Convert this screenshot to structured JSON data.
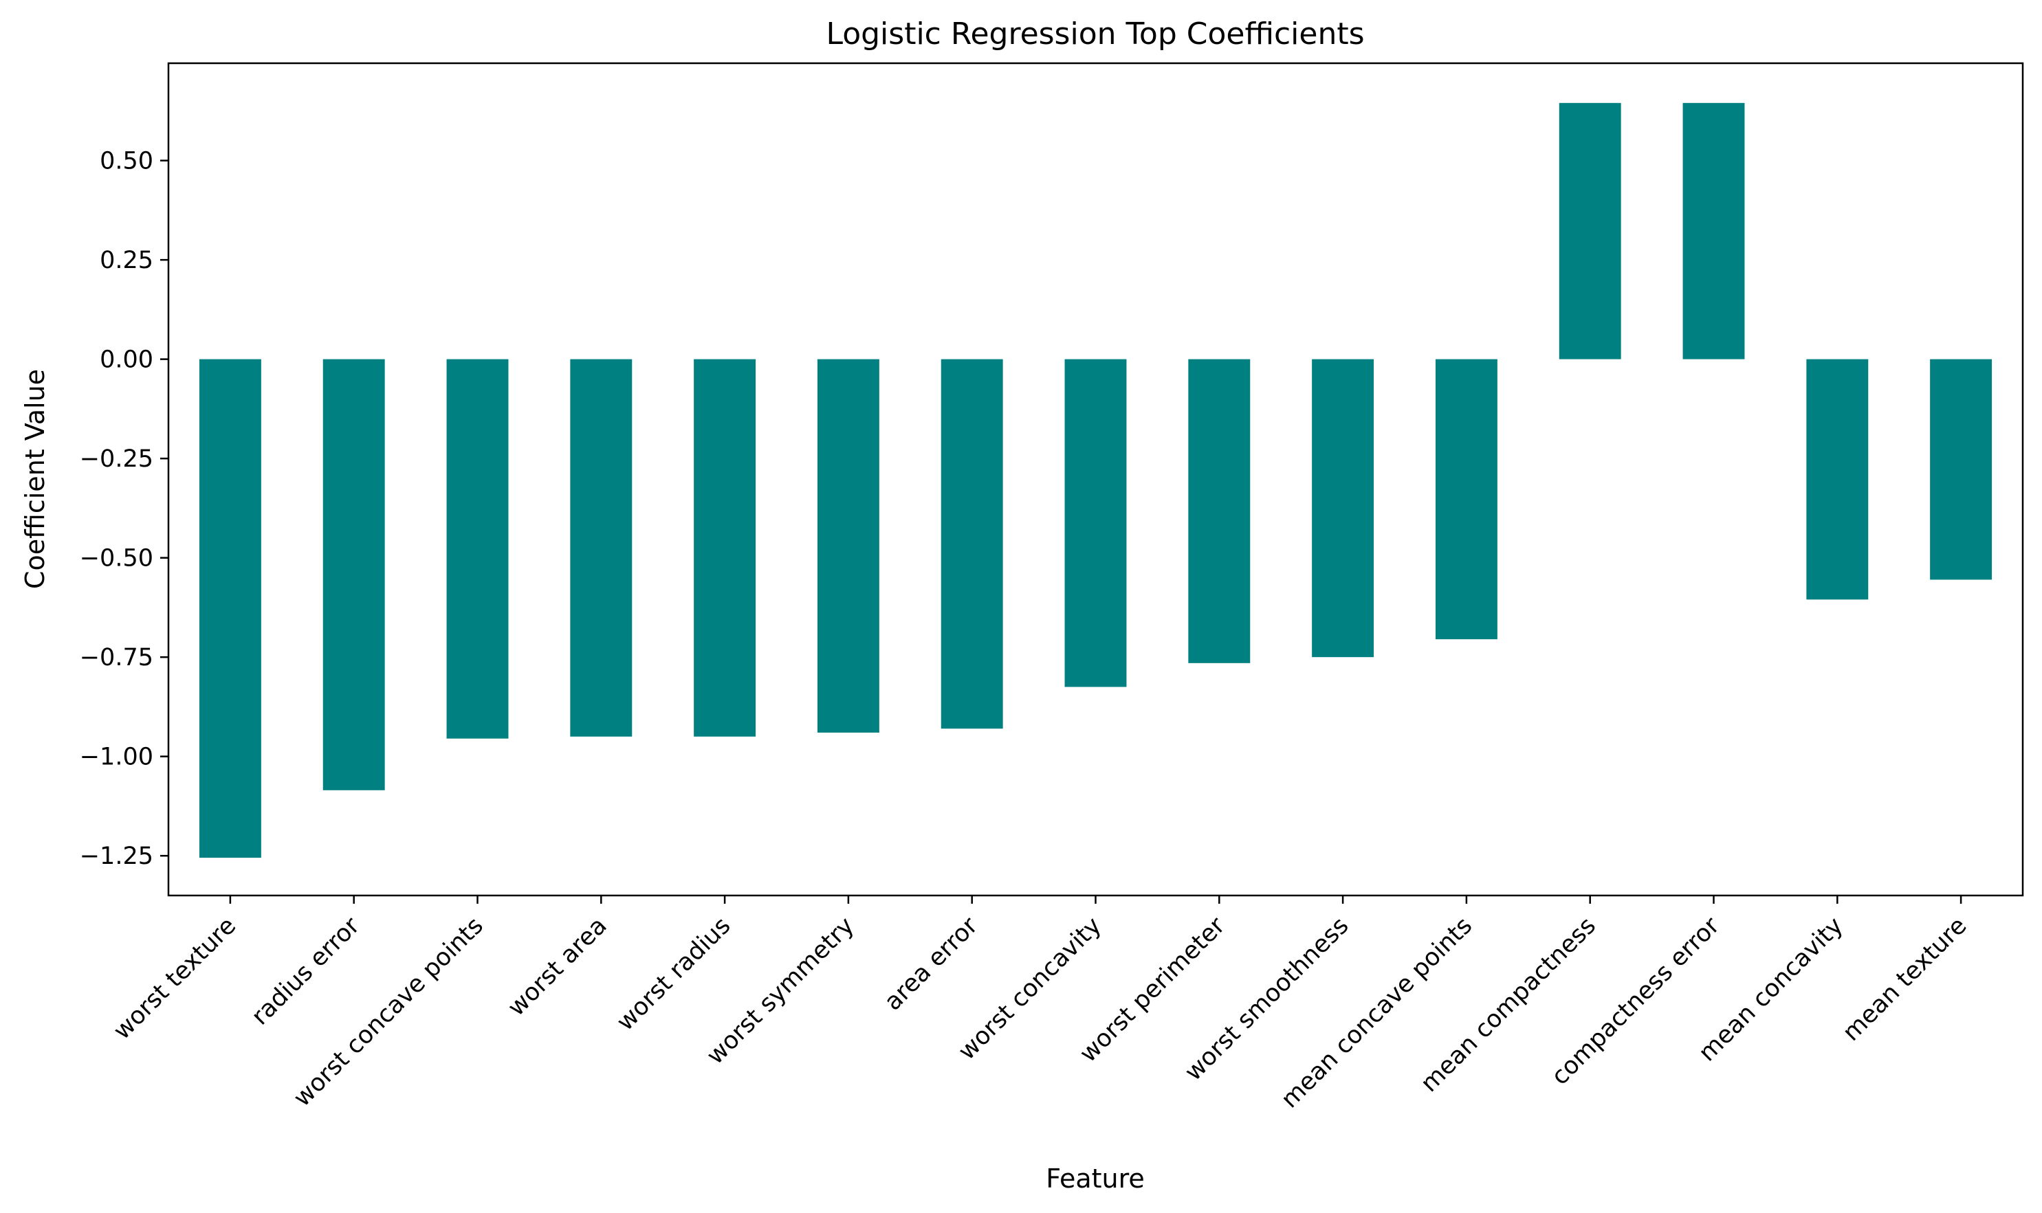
{
  "chart_data": {
    "type": "bar",
    "title": "Logistic Regression Top Coefficients",
    "xlabel": "Feature",
    "ylabel": "Coefficient Value",
    "categories": [
      "worst texture",
      "radius error",
      "worst concave points",
      "worst area",
      "worst radius",
      "worst symmetry",
      "area error",
      "worst concavity",
      "worst perimeter",
      "worst smoothness",
      "mean concave points",
      "mean compactness",
      "compactness error",
      "mean concavity",
      "mean texture"
    ],
    "values": [
      -1.255,
      -1.085,
      -0.955,
      -0.95,
      -0.95,
      -0.94,
      -0.93,
      -0.825,
      -0.765,
      -0.75,
      -0.705,
      0.645,
      0.645,
      -0.605,
      -0.555
    ],
    "ylim": [
      -1.35,
      0.745
    ],
    "yticks": [
      -1.25,
      -1.0,
      -0.75,
      -0.5,
      -0.25,
      0.0,
      0.25,
      0.5
    ],
    "ytick_labels": [
      "−1.25",
      "−1.00",
      "−0.75",
      "−0.50",
      "−0.25",
      "0.00",
      "0.25",
      "0.50"
    ],
    "bar_color": "#008080",
    "grid": false,
    "legend": "none"
  }
}
